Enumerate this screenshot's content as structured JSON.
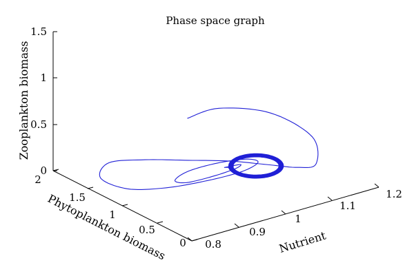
{
  "chart_data": {
    "type": "line",
    "projection": "3d",
    "title": "Phase space graph",
    "xlabel": "Nutrient",
    "ylabel": "Phytoplankton biomass",
    "zlabel": "Zooplankton biomass",
    "xlim": [
      0.8,
      1.2
    ],
    "ylim": [
      0,
      2
    ],
    "zlim": [
      0,
      1.5
    ],
    "xticks": [
      "0.8",
      "0.9",
      "1",
      "1.1",
      "1.2"
    ],
    "yticks": [
      "0",
      "0.5",
      "1",
      "1.5",
      "2"
    ],
    "zticks": [
      "0",
      "0.5",
      "1",
      "1.5"
    ],
    "grid": false,
    "series": [
      {
        "color": "#1f1fd6",
        "description": "Trajectory spiraling inward to a limit cycle",
        "x": [
          0.88,
          0.94,
          1.04,
          1.12,
          1.14,
          1.13,
          1.1,
          1.06,
          1.0,
          0.93,
          0.86,
          0.82,
          0.84,
          0.9,
          0.98,
          1.05,
          1.09,
          1.08,
          1.03,
          0.97,
          0.93,
          0.94,
          0.99,
          1.04,
          1.06,
          1.03
        ],
        "y": [
          0.6,
          0.55,
          0.48,
          0.42,
          0.5,
          0.7,
          0.95,
          1.2,
          1.4,
          1.55,
          1.6,
          1.45,
          1.2,
          1.05,
          0.98,
          0.95,
          1.0,
          1.1,
          1.18,
          1.2,
          1.12,
          1.02,
          0.98,
          1.0,
          1.05,
          1.08
        ],
        "z": [
          0.98,
          1.02,
          0.85,
          0.5,
          0.15,
          0.05,
          0.03,
          0.03,
          0.05,
          0.1,
          0.15,
          0.1,
          0.05,
          0.03,
          0.02,
          0.03,
          0.05,
          0.06,
          0.06,
          0.05,
          0.04,
          0.04,
          0.05,
          0.05,
          0.05,
          0.05
        ]
      }
    ]
  }
}
